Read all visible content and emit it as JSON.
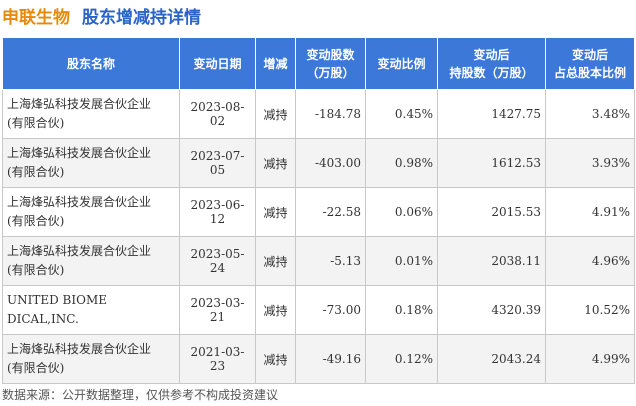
{
  "header": {
    "company": "申联生物",
    "title": "股东增减持详情"
  },
  "table": {
    "columns": [
      {
        "line1": "股东名称",
        "line2": ""
      },
      {
        "line1": "变动日期",
        "line2": ""
      },
      {
        "line1": "增减",
        "line2": ""
      },
      {
        "line1": "变动股数",
        "line2": "（万股）"
      },
      {
        "line1": "变动比例",
        "line2": ""
      },
      {
        "line1": "变动后",
        "line2": "持股数（万股）"
      },
      {
        "line1": "变动后",
        "line2": "占总股本比例"
      }
    ],
    "rows": [
      {
        "name_line1": "上海烽弘科技发展合伙企业",
        "name_line2": "(有限合伙)",
        "date": "2023-08-02",
        "action": "减持",
        "shares": "-184.78",
        "ratio": "0.45%",
        "holding": "1427.75",
        "pct": "3.48%"
      },
      {
        "name_line1": "上海烽弘科技发展合伙企业",
        "name_line2": "(有限合伙)",
        "date": "2023-07-05",
        "action": "减持",
        "shares": "-403.00",
        "ratio": "0.98%",
        "holding": "1612.53",
        "pct": "3.93%"
      },
      {
        "name_line1": "上海烽弘科技发展合伙企业",
        "name_line2": "(有限合伙)",
        "date": "2023-06-12",
        "action": "减持",
        "shares": "-22.58",
        "ratio": "0.06%",
        "holding": "2015.53",
        "pct": "4.91%"
      },
      {
        "name_line1": "上海烽弘科技发展合伙企业",
        "name_line2": "(有限合伙)",
        "date": "2023-05-24",
        "action": "减持",
        "shares": "-5.13",
        "ratio": "0.01%",
        "holding": "2038.11",
        "pct": "4.96%"
      },
      {
        "name_line1": "UNITED BIOME",
        "name_line2": "DICAL,INC.",
        "date": "2023-03-21",
        "action": "减持",
        "shares": "-73.00",
        "ratio": "0.18%",
        "holding": "4320.39",
        "pct": "10.52%"
      },
      {
        "name_line1": "上海烽弘科技发展合伙企业",
        "name_line2": "(有限合伙)",
        "date": "2021-03-23",
        "action": "减持",
        "shares": "-49.16",
        "ratio": "0.12%",
        "holding": "2043.24",
        "pct": "4.99%"
      }
    ]
  },
  "footer": {
    "source": "数据来源：公开数据整理，仅供参考不构成投资建议"
  }
}
